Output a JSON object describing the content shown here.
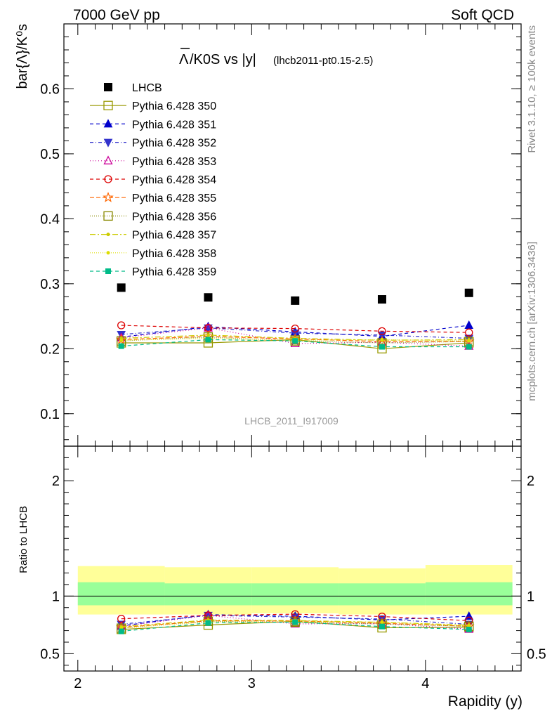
{
  "header": {
    "left": "7000 GeV pp",
    "right": "Soft QCD"
  },
  "side_labels": {
    "rivet": "Rivet 3.1.10, ≥ 100k events",
    "mcplots": "mcplots.cern.ch [arXiv:1306.3436]"
  },
  "colors": {
    "band_yellow": "#ffff99",
    "band_green": "#99ff99",
    "frame": "#000000",
    "watermark": "#9a9a9a"
  },
  "chart_data": [
    {
      "type": "scatter",
      "title_bar": "Λ",
      "title_rest": "/K0S vs |y|",
      "title_small": "(lhcb2011-pt0.15-2.5)",
      "ylabel": "bar{Λ}/K⁰s",
      "ylim": [
        0.05,
        0.7
      ],
      "xlim": [
        1.92,
        4.55
      ],
      "yticks": [
        0.1,
        0.2,
        0.3,
        0.4,
        0.5,
        0.6
      ],
      "watermark": "LHCB_2011_I917009",
      "legend_position": "top-left",
      "x": [
        2.25,
        2.75,
        3.25,
        3.75,
        4.25
      ],
      "series": [
        {
          "name": "LHCB",
          "color": "#000000",
          "marker": "square-filled",
          "dash": "none",
          "values": [
            0.294,
            0.279,
            0.274,
            0.276,
            0.286
          ],
          "is_data": true
        },
        {
          "name": "Pythia 6.428 350",
          "color": "#999900",
          "marker": "square-open",
          "dash": "",
          "values": [
            0.209,
            0.209,
            0.214,
            0.2,
            0.209
          ]
        },
        {
          "name": "Pythia 6.428 351",
          "color": "#0000cc",
          "marker": "triangle-up-filled",
          "dash": "5,4",
          "values": [
            0.218,
            0.234,
            0.226,
            0.219,
            0.236
          ]
        },
        {
          "name": "Pythia 6.428 352",
          "color": "#3333cc",
          "marker": "triangle-down-filled",
          "dash": "5,3,1,3",
          "values": [
            0.222,
            0.232,
            0.224,
            0.221,
            0.216
          ]
        },
        {
          "name": "Pythia 6.428 353",
          "color": "#cc0099",
          "marker": "triangle-up-open",
          "dash": "1,3",
          "values": [
            0.217,
            0.232,
            0.208,
            0.21,
            0.204
          ]
        },
        {
          "name": "Pythia 6.428 354",
          "color": "#dd0000",
          "marker": "circle-open",
          "dash": "5,4",
          "values": [
            0.236,
            0.232,
            0.231,
            0.227,
            0.225
          ]
        },
        {
          "name": "Pythia 6.428 355",
          "color": "#ff6600",
          "marker": "star-open",
          "dash": "6,3",
          "values": [
            0.214,
            0.219,
            0.215,
            0.211,
            0.211
          ]
        },
        {
          "name": "Pythia 6.428 356",
          "color": "#888800",
          "marker": "square-open",
          "dash": "1,2",
          "values": [
            0.212,
            0.218,
            0.212,
            0.209,
            0.211
          ]
        },
        {
          "name": "Pythia 6.428 357",
          "color": "#cccc00",
          "marker": "dot",
          "dash": "8,3,2,3",
          "values": [
            0.216,
            0.221,
            0.216,
            0.213,
            0.214
          ]
        },
        {
          "name": "Pythia 6.428 358",
          "color": "#dddd00",
          "marker": "dot",
          "dash": "1,2",
          "values": [
            0.213,
            0.216,
            0.213,
            0.214,
            0.212
          ]
        },
        {
          "name": "Pythia 6.428 359",
          "color": "#00bb88",
          "marker": "square-small-filled",
          "dash": "5,4",
          "values": [
            0.204,
            0.214,
            0.212,
            0.203,
            0.203
          ]
        }
      ]
    },
    {
      "type": "scatter",
      "ylabel": "Ratio to LHCB",
      "xlabel": "Rapidity (y)",
      "ylim": [
        0.35,
        2.3
      ],
      "xlim": [
        1.92,
        4.55
      ],
      "xticks": [
        2,
        3,
        4
      ],
      "yticks": [
        0.5,
        1,
        2
      ],
      "x": [
        2.25,
        2.75,
        3.25,
        3.75,
        4.25
      ],
      "band_x_edges": [
        2.0,
        2.5,
        3.0,
        3.5,
        4.0,
        4.5
      ],
      "band_yellow": [
        [
          0.84,
          1.26
        ],
        [
          0.84,
          1.25
        ],
        [
          0.85,
          1.25
        ],
        [
          0.84,
          1.24
        ],
        [
          0.84,
          1.27
        ]
      ],
      "band_green": [
        [
          0.92,
          1.12
        ],
        [
          0.92,
          1.11
        ],
        [
          0.92,
          1.11
        ],
        [
          0.92,
          1.11
        ],
        [
          0.92,
          1.12
        ]
      ],
      "series": [
        {
          "name": "Pythia 6.428 350",
          "values": [
            0.711,
            0.749,
            0.781,
            0.725,
            0.731
          ]
        },
        {
          "name": "Pythia 6.428 351",
          "values": [
            0.741,
            0.839,
            0.825,
            0.793,
            0.825
          ]
        },
        {
          "name": "Pythia 6.428 352",
          "values": [
            0.755,
            0.832,
            0.818,
            0.801,
            0.755
          ]
        },
        {
          "name": "Pythia 6.428 353",
          "values": [
            0.738,
            0.832,
            0.759,
            0.761,
            0.713
          ]
        },
        {
          "name": "Pythia 6.428 354",
          "values": [
            0.803,
            0.832,
            0.843,
            0.822,
            0.787
          ]
        },
        {
          "name": "Pythia 6.428 355",
          "values": [
            0.728,
            0.785,
            0.785,
            0.764,
            0.738
          ]
        },
        {
          "name": "Pythia 6.428 356",
          "values": [
            0.721,
            0.781,
            0.774,
            0.757,
            0.738
          ]
        },
        {
          "name": "Pythia 6.428 357",
          "values": [
            0.735,
            0.792,
            0.788,
            0.772,
            0.748
          ]
        },
        {
          "name": "Pythia 6.428 358",
          "values": [
            0.724,
            0.774,
            0.777,
            0.775,
            0.741
          ]
        },
        {
          "name": "Pythia 6.428 359",
          "values": [
            0.694,
            0.767,
            0.774,
            0.736,
            0.71
          ]
        }
      ]
    }
  ]
}
